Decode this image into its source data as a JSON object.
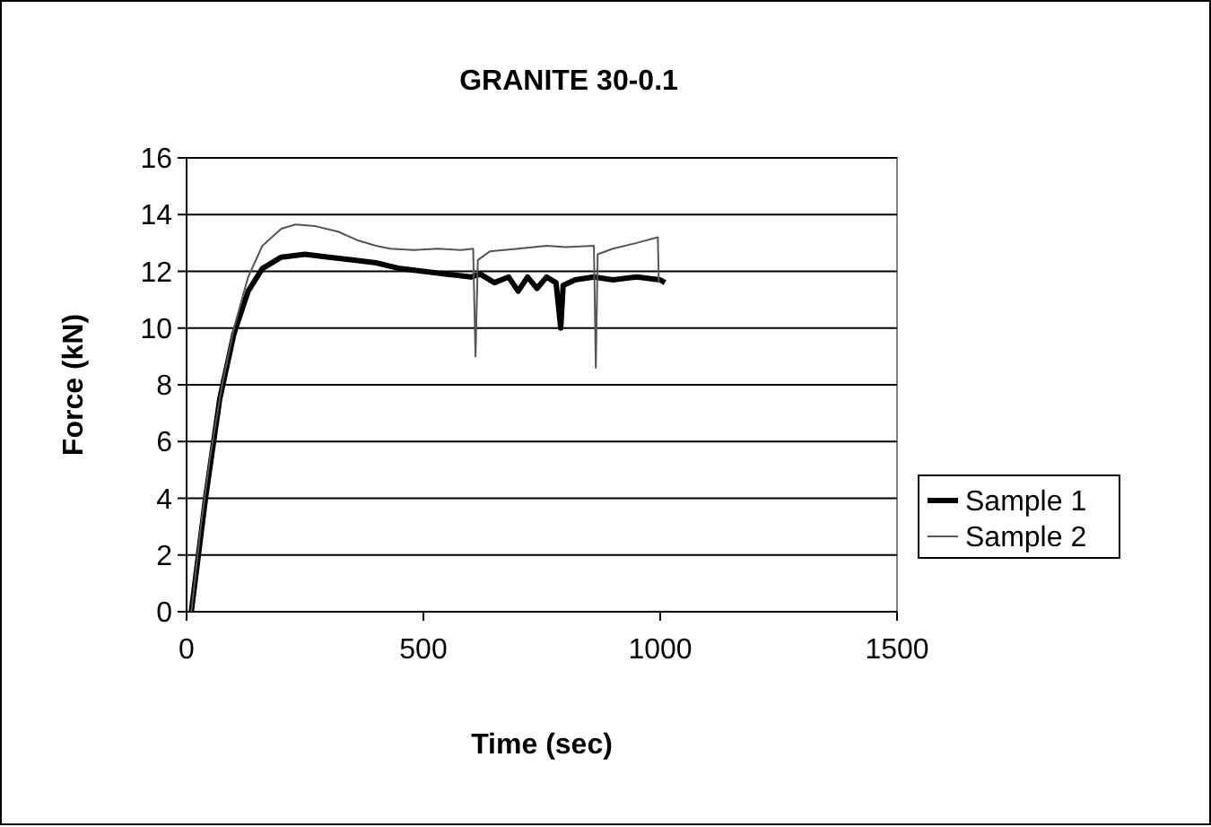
{
  "chart_data": {
    "type": "line",
    "title": "GRANITE 30-0.1",
    "xlabel": "Time (sec)",
    "ylabel": "Force (kN)",
    "xlim": [
      0,
      1500
    ],
    "xticks": [
      0,
      500,
      1000,
      1500
    ],
    "ylim": [
      0,
      16
    ],
    "yticks": [
      0,
      2,
      4,
      6,
      8,
      10,
      12,
      14,
      16
    ],
    "grid": "y",
    "legend": "right",
    "series": [
      {
        "name": "Sample 1",
        "color": "#000000",
        "x": [
          10,
          40,
          70,
          100,
          130,
          160,
          200,
          250,
          300,
          350,
          400,
          450,
          500,
          550,
          600,
          620,
          650,
          680,
          700,
          720,
          740,
          760,
          780,
          790,
          795,
          820,
          860,
          900,
          950,
          1000,
          1010
        ],
        "values": [
          0,
          4,
          7.5,
          9.8,
          11.3,
          12.1,
          12.5,
          12.6,
          12.5,
          12.4,
          12.3,
          12.1,
          12,
          11.9,
          11.8,
          11.9,
          11.6,
          11.8,
          11.3,
          11.8,
          11.4,
          11.8,
          11.6,
          10,
          11.5,
          11.7,
          11.8,
          11.7,
          11.8,
          11.7,
          11.6
        ]
      },
      {
        "name": "Sample 2",
        "color": "#555555",
        "x": [
          10,
          30,
          50,
          75,
          100,
          130,
          160,
          200,
          230,
          270,
          320,
          360,
          400,
          430,
          480,
          530,
          580,
          605,
          610,
          615,
          640,
          700,
          760,
          800,
          860,
          864,
          868,
          900,
          950,
          995,
          997
        ],
        "values": [
          0,
          3,
          5.5,
          8,
          10,
          11.8,
          12.9,
          13.5,
          13.65,
          13.6,
          13.4,
          13.1,
          12.9,
          12.8,
          12.75,
          12.8,
          12.75,
          12.8,
          9,
          12.4,
          12.7,
          12.8,
          12.9,
          12.85,
          12.9,
          8.6,
          12.6,
          12.8,
          13,
          13.2,
          11.6
        ]
      }
    ]
  }
}
